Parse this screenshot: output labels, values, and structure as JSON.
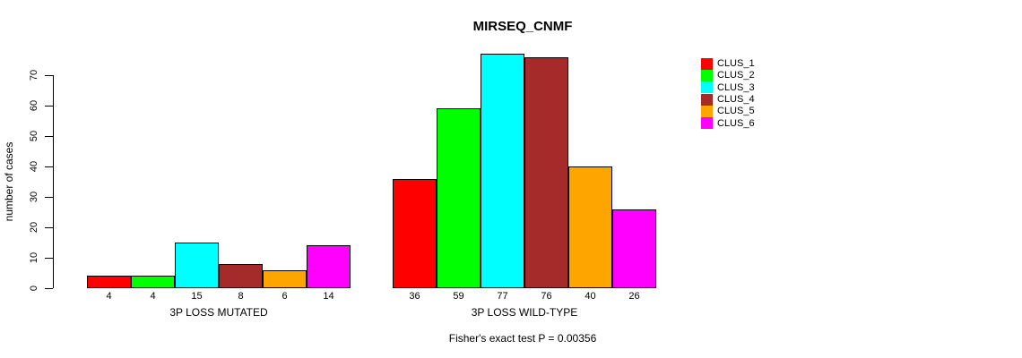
{
  "page": {
    "background_color": "#FFFFFF",
    "text_color": "#000000"
  },
  "chart_data": {
    "type": "bar",
    "title": "MIRSEQ_CNMF",
    "ylabel": "number of cases",
    "xlabel": "",
    "ylim": [
      0,
      70
    ],
    "yticks": [
      0,
      10,
      20,
      30,
      40,
      50,
      60,
      70
    ],
    "grid": false,
    "legend_position": "right",
    "series_colors": [
      "#FF0000",
      "#00FF00",
      "#00FFFF",
      "#A52A2A",
      "#FFA500",
      "#FF00FF"
    ],
    "groups": [
      {
        "label": "3P LOSS MUTATED",
        "values": [
          4,
          4,
          15,
          8,
          6,
          14
        ]
      },
      {
        "label": "3P LOSS WILD-TYPE",
        "values": [
          36,
          59,
          77,
          76,
          40,
          26
        ]
      }
    ],
    "legend": [
      {
        "label": "CLUS_1",
        "color": "#FF0000"
      },
      {
        "label": "CLUS_2",
        "color": "#00FF00"
      },
      {
        "label": "CLUS_3",
        "color": "#00FFFF"
      },
      {
        "label": "CLUS_4",
        "color": "#A52A2A"
      },
      {
        "label": "CLUS_5",
        "color": "#FFA500"
      },
      {
        "label": "CLUS_6",
        "color": "#FF00FF"
      }
    ],
    "footnote": "Fisher's exact test P = 0.00356"
  }
}
